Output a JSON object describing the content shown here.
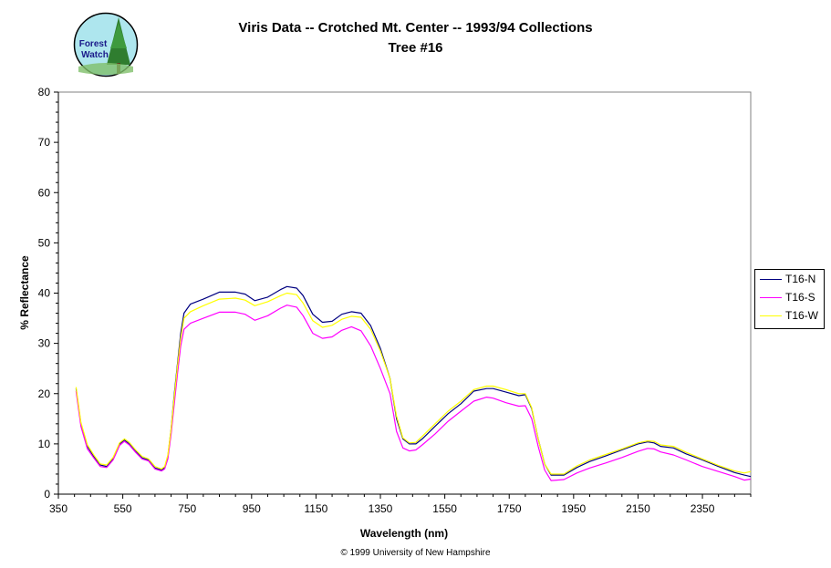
{
  "logo": {
    "line1": "Forest",
    "line2": "Watch"
  },
  "chart_data": {
    "type": "line",
    "title": "Viris Data -- Crotched Mt. Center -- 1993/94 Collections",
    "subtitle": "Tree #16",
    "xlabel": "Wavelength (nm)",
    "ylabel": "% Reflectance",
    "xlim": [
      350,
      2500
    ],
    "ylim": [
      0,
      80
    ],
    "xticks": [
      350,
      550,
      750,
      950,
      1150,
      1350,
      1550,
      1750,
      1950,
      2150,
      2350
    ],
    "yticks": [
      0,
      10,
      20,
      30,
      40,
      50,
      60,
      70,
      80
    ],
    "grid": false,
    "legend_position": "right",
    "series": [
      {
        "name": "T16-N",
        "color": "#000080",
        "points": [
          [
            405,
            21
          ],
          [
            420,
            14
          ],
          [
            440,
            9.5
          ],
          [
            460,
            7.5
          ],
          [
            480,
            5.8
          ],
          [
            500,
            5.5
          ],
          [
            520,
            7
          ],
          [
            540,
            10
          ],
          [
            555,
            10.8
          ],
          [
            570,
            10
          ],
          [
            590,
            8.5
          ],
          [
            610,
            7.2
          ],
          [
            630,
            6.8
          ],
          [
            650,
            5.2
          ],
          [
            670,
            4.8
          ],
          [
            680,
            5.2
          ],
          [
            690,
            7.5
          ],
          [
            700,
            13
          ],
          [
            710,
            20
          ],
          [
            720,
            26
          ],
          [
            730,
            32
          ],
          [
            740,
            36
          ],
          [
            760,
            37.8
          ],
          [
            800,
            38.8
          ],
          [
            850,
            40.2
          ],
          [
            900,
            40.2
          ],
          [
            930,
            39.8
          ],
          [
            960,
            38.5
          ],
          [
            1000,
            39.2
          ],
          [
            1040,
            40.7
          ],
          [
            1060,
            41.3
          ],
          [
            1090,
            41
          ],
          [
            1110,
            39.5
          ],
          [
            1140,
            35.8
          ],
          [
            1170,
            34.2
          ],
          [
            1200,
            34.4
          ],
          [
            1230,
            35.8
          ],
          [
            1260,
            36.3
          ],
          [
            1290,
            36
          ],
          [
            1320,
            33.5
          ],
          [
            1350,
            29
          ],
          [
            1380,
            23
          ],
          [
            1400,
            15
          ],
          [
            1420,
            11
          ],
          [
            1440,
            10
          ],
          [
            1460,
            10
          ],
          [
            1480,
            11
          ],
          [
            1520,
            13.5
          ],
          [
            1560,
            16
          ],
          [
            1600,
            18
          ],
          [
            1640,
            20.5
          ],
          [
            1680,
            21
          ],
          [
            1700,
            21
          ],
          [
            1740,
            20.3
          ],
          [
            1780,
            19.6
          ],
          [
            1800,
            19.8
          ],
          [
            1820,
            17
          ],
          [
            1840,
            11
          ],
          [
            1860,
            6
          ],
          [
            1880,
            3.8
          ],
          [
            1920,
            3.8
          ],
          [
            1960,
            5.3
          ],
          [
            2000,
            6.5
          ],
          [
            2050,
            7.6
          ],
          [
            2100,
            8.8
          ],
          [
            2150,
            10
          ],
          [
            2180,
            10.4
          ],
          [
            2200,
            10.2
          ],
          [
            2220,
            9.5
          ],
          [
            2260,
            9.2
          ],
          [
            2300,
            8
          ],
          [
            2350,
            6.8
          ],
          [
            2400,
            5.5
          ],
          [
            2450,
            4.3
          ],
          [
            2480,
            3.8
          ],
          [
            2500,
            3.5
          ]
        ]
      },
      {
        "name": "T16-S",
        "color": "#ff00ff",
        "points": [
          [
            405,
            20.5
          ],
          [
            420,
            13.5
          ],
          [
            440,
            9
          ],
          [
            460,
            7.2
          ],
          [
            480,
            5.5
          ],
          [
            500,
            5.3
          ],
          [
            520,
            6.8
          ],
          [
            540,
            9.7
          ],
          [
            555,
            10.5
          ],
          [
            570,
            9.8
          ],
          [
            590,
            8.3
          ],
          [
            610,
            7
          ],
          [
            630,
            6.6
          ],
          [
            650,
            5
          ],
          [
            670,
            4.6
          ],
          [
            680,
            5
          ],
          [
            690,
            7
          ],
          [
            700,
            12
          ],
          [
            710,
            18
          ],
          [
            720,
            24
          ],
          [
            730,
            29.5
          ],
          [
            740,
            32.8
          ],
          [
            760,
            34
          ],
          [
            800,
            35
          ],
          [
            850,
            36.2
          ],
          [
            900,
            36.2
          ],
          [
            930,
            35.8
          ],
          [
            960,
            34.6
          ],
          [
            1000,
            35.5
          ],
          [
            1040,
            37
          ],
          [
            1060,
            37.6
          ],
          [
            1090,
            37.2
          ],
          [
            1110,
            35.5
          ],
          [
            1140,
            32
          ],
          [
            1170,
            31
          ],
          [
            1200,
            31.3
          ],
          [
            1230,
            32.6
          ],
          [
            1260,
            33.3
          ],
          [
            1290,
            32.5
          ],
          [
            1320,
            29.5
          ],
          [
            1350,
            25
          ],
          [
            1380,
            20
          ],
          [
            1400,
            12.5
          ],
          [
            1420,
            9.2
          ],
          [
            1440,
            8.6
          ],
          [
            1460,
            8.8
          ],
          [
            1480,
            9.8
          ],
          [
            1520,
            12
          ],
          [
            1560,
            14.5
          ],
          [
            1600,
            16.5
          ],
          [
            1640,
            18.5
          ],
          [
            1680,
            19.3
          ],
          [
            1700,
            19.1
          ],
          [
            1740,
            18.2
          ],
          [
            1780,
            17.5
          ],
          [
            1800,
            17.6
          ],
          [
            1820,
            15
          ],
          [
            1840,
            9.5
          ],
          [
            1860,
            4.8
          ],
          [
            1880,
            2.7
          ],
          [
            1920,
            2.9
          ],
          [
            1960,
            4.2
          ],
          [
            2000,
            5.2
          ],
          [
            2050,
            6.2
          ],
          [
            2100,
            7.3
          ],
          [
            2150,
            8.5
          ],
          [
            2180,
            9.1
          ],
          [
            2200,
            9
          ],
          [
            2220,
            8.4
          ],
          [
            2260,
            7.8
          ],
          [
            2300,
            6.8
          ],
          [
            2350,
            5.5
          ],
          [
            2400,
            4.5
          ],
          [
            2450,
            3.5
          ],
          [
            2480,
            2.8
          ],
          [
            2500,
            3
          ]
        ]
      },
      {
        "name": "T16-W",
        "color": "#ffff00",
        "points": [
          [
            405,
            21.3
          ],
          [
            420,
            14.3
          ],
          [
            440,
            9.8
          ],
          [
            460,
            7.8
          ],
          [
            480,
            6
          ],
          [
            500,
            5.8
          ],
          [
            520,
            7.3
          ],
          [
            540,
            10.2
          ],
          [
            555,
            11
          ],
          [
            570,
            10.3
          ],
          [
            590,
            8.8
          ],
          [
            610,
            7.5
          ],
          [
            630,
            7
          ],
          [
            650,
            5.5
          ],
          [
            670,
            5
          ],
          [
            680,
            5.5
          ],
          [
            690,
            7.8
          ],
          [
            700,
            13
          ],
          [
            710,
            19.5
          ],
          [
            720,
            25.5
          ],
          [
            730,
            31
          ],
          [
            740,
            35
          ],
          [
            760,
            36.3
          ],
          [
            800,
            37.5
          ],
          [
            850,
            38.8
          ],
          [
            900,
            39
          ],
          [
            930,
            38.6
          ],
          [
            960,
            37.5
          ],
          [
            1000,
            38.3
          ],
          [
            1040,
            39.5
          ],
          [
            1060,
            40
          ],
          [
            1090,
            39.7
          ],
          [
            1110,
            38
          ],
          [
            1140,
            34.5
          ],
          [
            1170,
            33.2
          ],
          [
            1200,
            33.6
          ],
          [
            1230,
            34.8
          ],
          [
            1260,
            35.4
          ],
          [
            1290,
            35.2
          ],
          [
            1320,
            32.8
          ],
          [
            1350,
            28.5
          ],
          [
            1380,
            23
          ],
          [
            1400,
            15.5
          ],
          [
            1420,
            11.2
          ],
          [
            1440,
            10.2
          ],
          [
            1460,
            10.3
          ],
          [
            1480,
            11.5
          ],
          [
            1520,
            14
          ],
          [
            1560,
            16.5
          ],
          [
            1600,
            18.5
          ],
          [
            1640,
            20.8
          ],
          [
            1680,
            21.5
          ],
          [
            1700,
            21.5
          ],
          [
            1740,
            20.8
          ],
          [
            1780,
            20
          ],
          [
            1800,
            20
          ],
          [
            1820,
            17.2
          ],
          [
            1840,
            11
          ],
          [
            1860,
            6
          ],
          [
            1880,
            4
          ],
          [
            1920,
            4
          ],
          [
            1960,
            5.6
          ],
          [
            2000,
            6.8
          ],
          [
            2050,
            7.9
          ],
          [
            2100,
            9
          ],
          [
            2150,
            10.2
          ],
          [
            2180,
            10.6
          ],
          [
            2200,
            10.5
          ],
          [
            2220,
            9.8
          ],
          [
            2260,
            9.5
          ],
          [
            2300,
            8.3
          ],
          [
            2350,
            7
          ],
          [
            2400,
            5.7
          ],
          [
            2450,
            4.6
          ],
          [
            2480,
            4.2
          ],
          [
            2500,
            4.5
          ]
        ]
      }
    ]
  },
  "credit": "© 1999 University of New Hampshire"
}
